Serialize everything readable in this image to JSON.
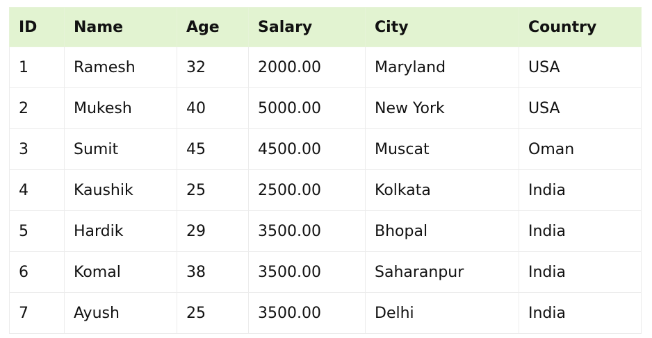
{
  "table": {
    "headers": [
      "ID",
      "Name",
      "Age",
      "Salary",
      "City",
      "Country"
    ],
    "rows": [
      [
        "1",
        "Ramesh",
        "32",
        "2000.00",
        "Maryland",
        "USA"
      ],
      [
        "2",
        "Mukesh",
        "40",
        "5000.00",
        "New York",
        "USA"
      ],
      [
        "3",
        "Sumit",
        "45",
        "4500.00",
        "Muscat",
        "Oman"
      ],
      [
        "4",
        "Kaushik",
        "25",
        "2500.00",
        "Kolkata",
        "India"
      ],
      [
        "5",
        "Hardik",
        "29",
        "3500.00",
        "Bhopal",
        "India"
      ],
      [
        "6",
        "Komal",
        "38",
        "3500.00",
        "Saharanpur",
        "India"
      ],
      [
        "7",
        "Ayush",
        "25",
        "3500.00",
        "Delhi",
        "India"
      ]
    ]
  },
  "colors": {
    "header_background": "#e2f3d1",
    "text": "#111111",
    "border": "#ececec"
  }
}
